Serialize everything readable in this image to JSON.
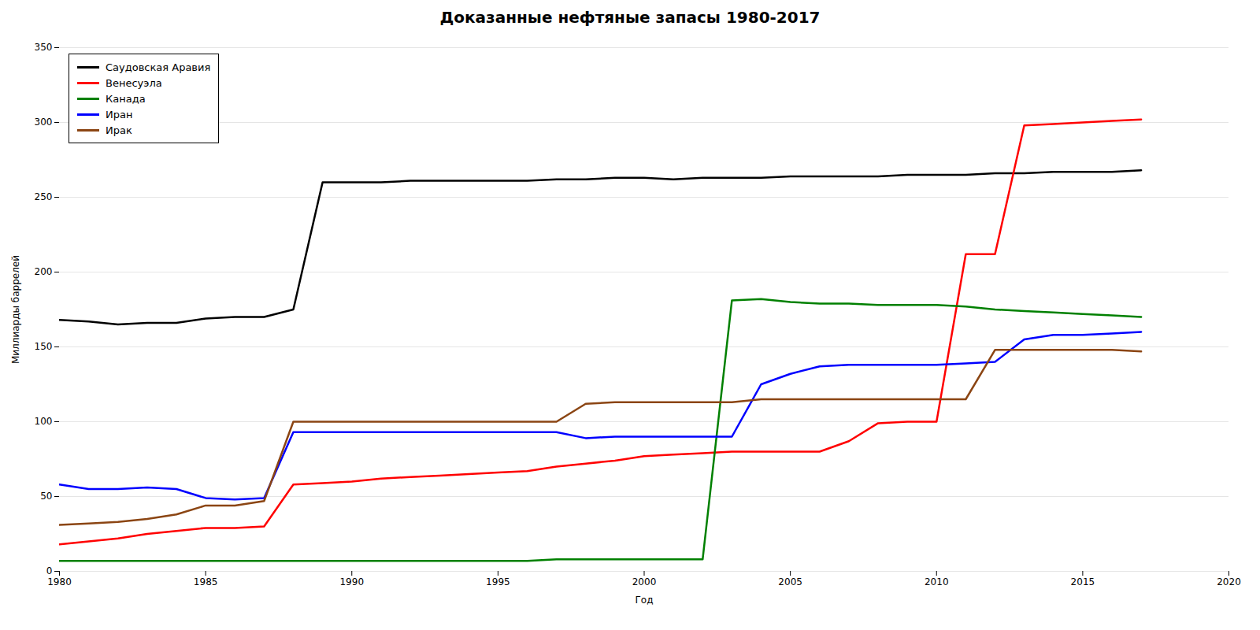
{
  "chart_data": {
    "type": "line",
    "title": "Доказанные нефтяные запасы 1980-2017",
    "xlabel": "Год",
    "ylabel": "Миллиарды баррелей",
    "x": [
      1980,
      1981,
      1982,
      1983,
      1984,
      1985,
      1986,
      1987,
      1988,
      1989,
      1990,
      1991,
      1992,
      1993,
      1994,
      1995,
      1996,
      1997,
      1998,
      1999,
      2000,
      2001,
      2002,
      2003,
      2004,
      2005,
      2006,
      2007,
      2008,
      2009,
      2010,
      2011,
      2012,
      2013,
      2014,
      2015,
      2016,
      2017
    ],
    "series": [
      {
        "name": "Саудовская Аравия",
        "color": "#000000",
        "values": [
          168,
          167,
          165,
          166,
          166,
          169,
          170,
          170,
          175,
          260,
          260,
          260,
          261,
          261,
          261,
          261,
          261,
          262,
          262,
          263,
          263,
          262,
          263,
          263,
          263,
          264,
          264,
          264,
          264,
          265,
          265,
          265,
          266,
          266,
          267,
          267,
          267,
          268
        ]
      },
      {
        "name": "Венесуэла",
        "color": "#ff0000",
        "values": [
          18,
          20,
          22,
          25,
          27,
          29,
          29,
          30,
          58,
          59,
          60,
          62,
          63,
          64,
          65,
          66,
          67,
          70,
          72,
          74,
          77,
          78,
          79,
          80,
          80,
          80,
          80,
          87,
          99,
          100,
          100,
          212,
          212,
          298,
          299,
          300,
          301,
          302
        ]
      },
      {
        "name": "Канада",
        "color": "#008000",
        "values": [
          7,
          7,
          7,
          7,
          7,
          7,
          7,
          7,
          7,
          7,
          7,
          7,
          7,
          7,
          7,
          7,
          7,
          8,
          8,
          8,
          8,
          8,
          8,
          181,
          182,
          180,
          179,
          179,
          178,
          178,
          178,
          177,
          175,
          174,
          173,
          172,
          171,
          170
        ]
      },
      {
        "name": "Иран",
        "color": "#0000ff",
        "values": [
          58,
          55,
          55,
          56,
          55,
          49,
          48,
          49,
          93,
          93,
          93,
          93,
          93,
          93,
          93,
          93,
          93,
          93,
          89,
          90,
          90,
          90,
          90,
          90,
          125,
          132,
          137,
          138,
          138,
          138,
          138,
          139,
          140,
          155,
          158,
          158,
          159,
          160
        ]
      },
      {
        "name": "Ирак",
        "color": "#8b4513",
        "values": [
          31,
          32,
          33,
          35,
          38,
          44,
          44,
          47,
          100,
          100,
          100,
          100,
          100,
          100,
          100,
          100,
          100,
          100,
          112,
          113,
          113,
          113,
          113,
          113,
          115,
          115,
          115,
          115,
          115,
          115,
          115,
          115,
          148,
          148,
          148,
          148,
          148,
          147
        ]
      }
    ],
    "xlim": [
      1980,
      2020
    ],
    "ylim": [
      0,
      350
    ],
    "xticks": [
      1980,
      1985,
      1990,
      1995,
      2000,
      2005,
      2010,
      2015,
      2020
    ],
    "yticks": [
      0,
      50,
      100,
      150,
      200,
      250,
      300,
      350
    ],
    "grid": "y",
    "legend": "upper left"
  }
}
